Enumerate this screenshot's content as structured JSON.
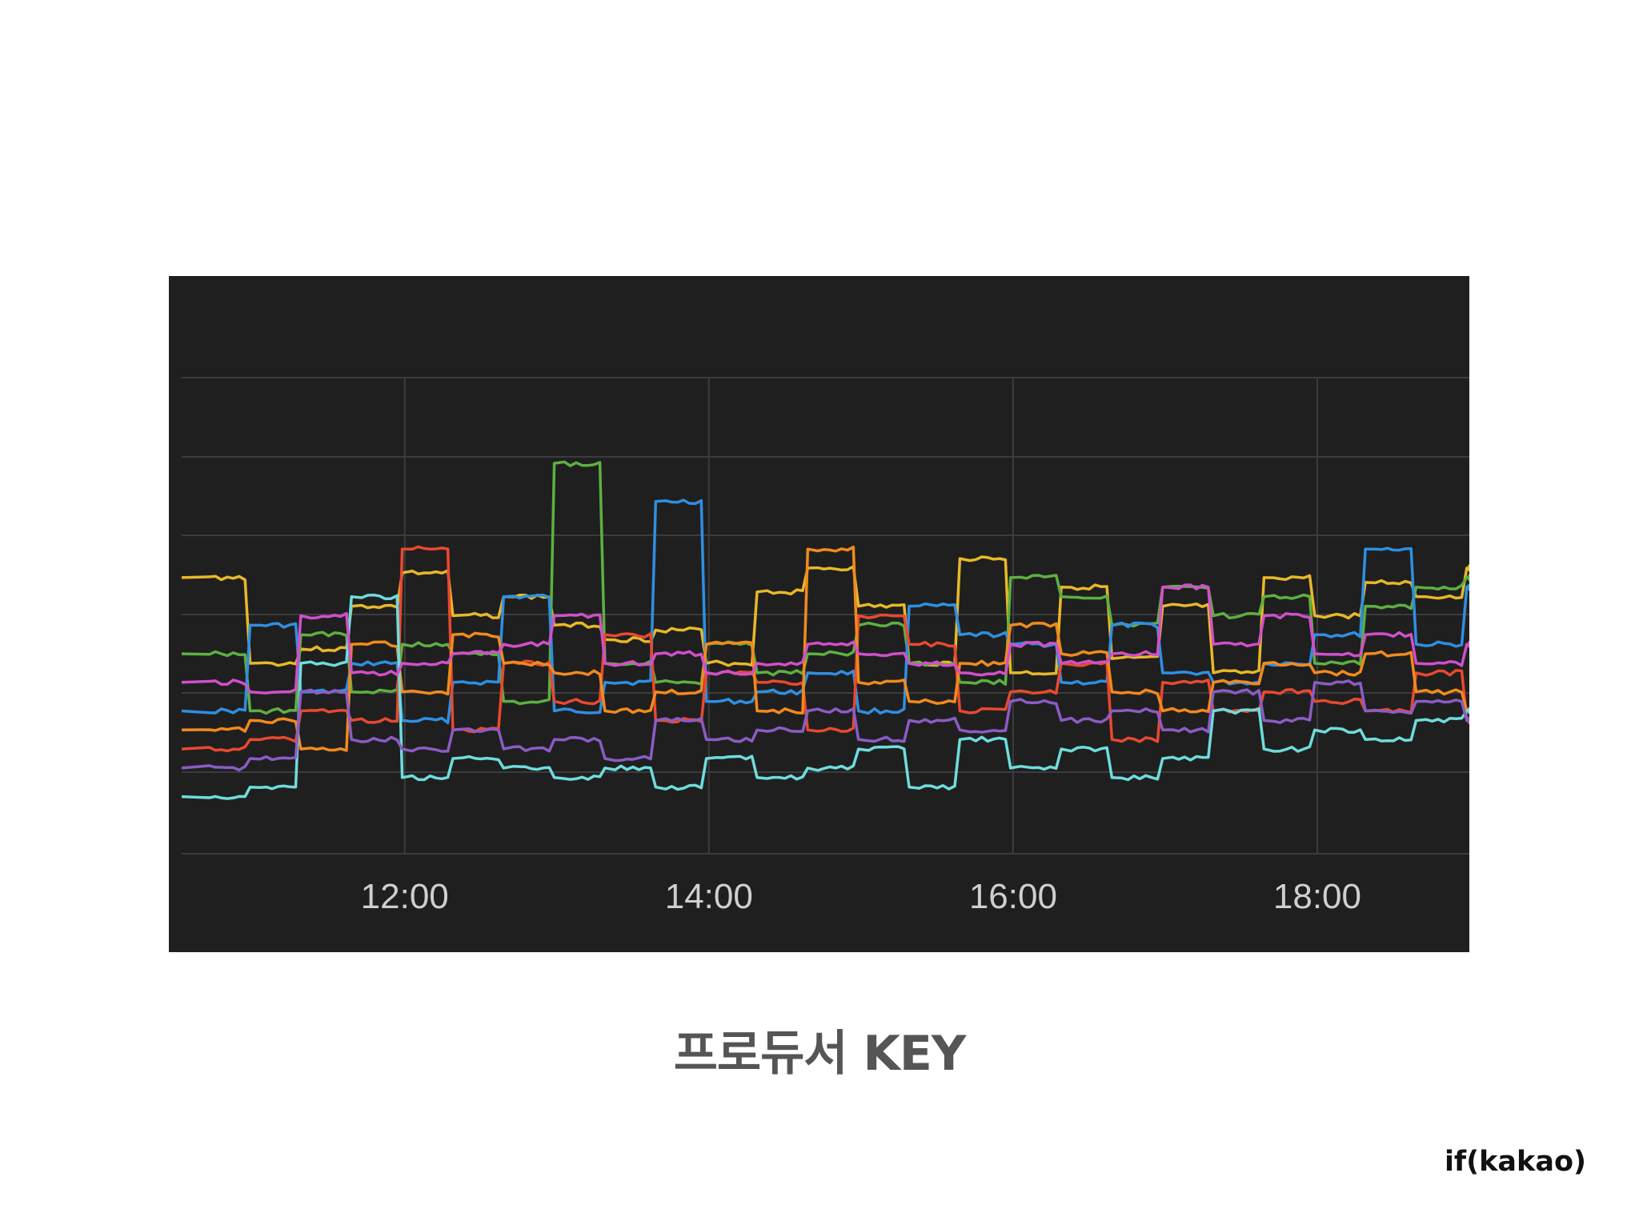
{
  "caption": "프로듀서 KEY",
  "brand": "if(kakao)",
  "chart_data": {
    "type": "line",
    "title": "",
    "xlabel": "",
    "ylabel": "",
    "x_ticks": [
      "12:00",
      "14:00",
      "16:00",
      "18:00"
    ],
    "x_range": [
      "10:32",
      "19:00"
    ],
    "y_grid_lines": 7,
    "grid": true,
    "background": "#1f1f20",
    "x": [
      "10:40",
      "11:00",
      "11:20",
      "11:40",
      "12:00",
      "12:20",
      "12:40",
      "13:00",
      "13:20",
      "13:40",
      "14:00",
      "14:20",
      "14:40",
      "15:00",
      "15:20",
      "15:40",
      "16:00",
      "16:20",
      "16:40",
      "17:00",
      "17:20",
      "17:40",
      "18:00",
      "18:20",
      "18:40",
      "19:00"
    ],
    "series": [
      {
        "color": "#e8b828",
        "values": [
          0.58,
          0.4,
          0.43,
          0.52,
          0.59,
          0.5,
          0.54,
          0.48,
          0.45,
          0.47,
          0.4,
          0.55,
          0.6,
          0.52,
          0.4,
          0.62,
          0.38,
          0.56,
          0.41,
          0.52,
          0.38,
          0.58,
          0.5,
          0.57,
          0.54,
          0.6
        ]
      },
      {
        "color": "#5db040",
        "values": [
          0.42,
          0.3,
          0.46,
          0.34,
          0.44,
          0.42,
          0.32,
          0.82,
          0.4,
          0.36,
          0.44,
          0.38,
          0.42,
          0.48,
          0.4,
          0.36,
          0.58,
          0.54,
          0.48,
          0.56,
          0.5,
          0.54,
          0.4,
          0.52,
          0.56,
          0.58
        ]
      },
      {
        "color": "#2f8fe0",
        "values": [
          0.3,
          0.48,
          0.34,
          0.4,
          0.28,
          0.36,
          0.54,
          0.3,
          0.36,
          0.74,
          0.32,
          0.34,
          0.38,
          0.3,
          0.52,
          0.46,
          0.44,
          0.36,
          0.48,
          0.38,
          0.36,
          0.4,
          0.46,
          0.64,
          0.44,
          0.56
        ]
      },
      {
        "color": "#e8492f",
        "values": [
          0.22,
          0.24,
          0.3,
          0.28,
          0.64,
          0.26,
          0.4,
          0.32,
          0.46,
          0.28,
          0.38,
          0.36,
          0.26,
          0.5,
          0.44,
          0.3,
          0.34,
          0.4,
          0.24,
          0.36,
          0.3,
          0.34,
          0.32,
          0.3,
          0.38,
          0.28
        ]
      },
      {
        "color": "#f28a1c",
        "values": [
          0.26,
          0.28,
          0.22,
          0.44,
          0.34,
          0.46,
          0.4,
          0.38,
          0.3,
          0.34,
          0.44,
          0.3,
          0.64,
          0.36,
          0.32,
          0.4,
          0.48,
          0.42,
          0.34,
          0.3,
          0.36,
          0.4,
          0.38,
          0.42,
          0.34,
          0.3
        ]
      },
      {
        "color": "#6fdcdc",
        "values": [
          0.12,
          0.14,
          0.4,
          0.54,
          0.16,
          0.2,
          0.18,
          0.16,
          0.18,
          0.14,
          0.2,
          0.16,
          0.18,
          0.22,
          0.14,
          0.24,
          0.18,
          0.22,
          0.16,
          0.2,
          0.3,
          0.22,
          0.26,
          0.24,
          0.28,
          0.3
        ]
      },
      {
        "color": "#8b5cc4",
        "values": [
          0.18,
          0.2,
          0.34,
          0.24,
          0.22,
          0.26,
          0.22,
          0.24,
          0.2,
          0.28,
          0.24,
          0.26,
          0.3,
          0.24,
          0.28,
          0.26,
          0.32,
          0.28,
          0.3,
          0.26,
          0.34,
          0.28,
          0.36,
          0.3,
          0.32,
          0.28
        ]
      },
      {
        "color": "#d14fc9",
        "values": [
          0.36,
          0.34,
          0.5,
          0.38,
          0.4,
          0.42,
          0.44,
          0.5,
          0.4,
          0.42,
          0.38,
          0.4,
          0.44,
          0.42,
          0.4,
          0.38,
          0.44,
          0.4,
          0.42,
          0.56,
          0.44,
          0.5,
          0.42,
          0.46,
          0.4,
          0.44
        ]
      }
    ]
  }
}
